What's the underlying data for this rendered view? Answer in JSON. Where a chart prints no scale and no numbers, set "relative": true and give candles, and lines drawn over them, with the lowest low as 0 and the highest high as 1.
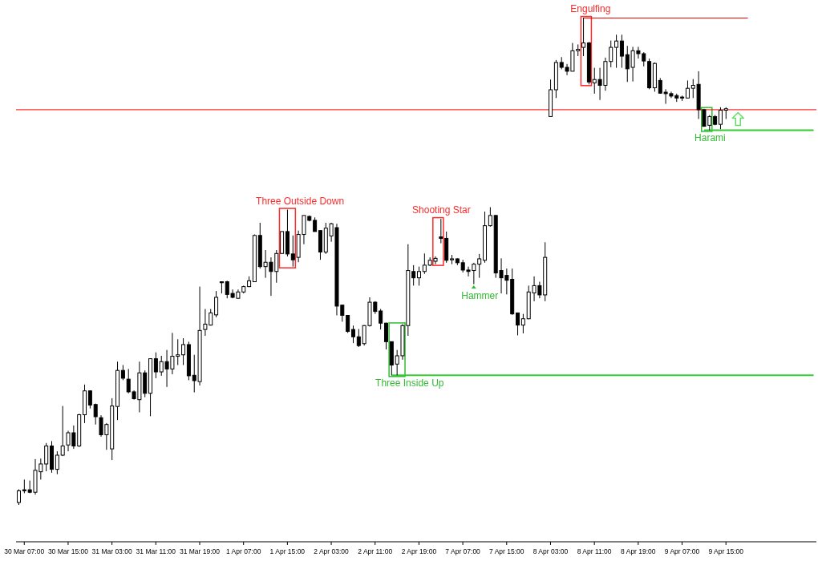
{
  "chart_data": {
    "type": "candlestick",
    "relative": true,
    "color": "#000000",
    "categories": [
      null,
      "30 Mar 07:00",
      null,
      null,
      null,
      null,
      null,
      null,
      null,
      "30 Mar 15:00",
      null,
      null,
      null,
      null,
      null,
      null,
      null,
      "31 Mar 03:00",
      null,
      null,
      null,
      null,
      null,
      null,
      null,
      "31 Mar 11:00",
      null,
      null,
      null,
      null,
      null,
      null,
      null,
      "31 Mar 19:00",
      null,
      null,
      null,
      null,
      null,
      null,
      null,
      "1 Apr 07:00",
      null,
      null,
      null,
      null,
      null,
      null,
      null,
      "1 Apr 15:00",
      null,
      null,
      null,
      null,
      null,
      null,
      null,
      "2 Apr 03:00",
      null,
      null,
      null,
      null,
      null,
      null,
      null,
      "2 Apr 11:00",
      null,
      null,
      null,
      null,
      null,
      null,
      null,
      "2 Apr 19:00",
      null,
      null,
      null,
      null,
      null,
      null,
      null,
      "7 Apr 07:00",
      null,
      null,
      null,
      null,
      null,
      null,
      null,
      "7 Apr 15:00",
      null,
      null,
      null,
      null,
      null,
      null,
      null,
      "8 Apr 03:00",
      null,
      null,
      null,
      null,
      null,
      null,
      null,
      "8 Apr 11:00",
      null,
      null,
      null,
      null,
      null,
      null,
      null,
      "8 Apr 19:00",
      null,
      null,
      null,
      null,
      null,
      null,
      null,
      "9 Apr 07:00",
      null,
      null,
      null,
      null,
      null,
      null,
      null,
      "9 Apr 15:00",
      null,
      null,
      null,
      null,
      null,
      null,
      null,
      null,
      null,
      null,
      null,
      null,
      null,
      null,
      null,
      null
    ],
    "ohlc": [
      [
        0.005,
        0.032,
        0,
        0.029
      ],
      [
        0.031,
        0.052,
        0.024,
        0.029
      ],
      [
        0.031,
        0.05,
        0.024,
        0.026
      ],
      [
        0.026,
        0.094,
        0.021,
        0.071
      ],
      [
        0.068,
        0.095,
        0.052,
        0.084
      ],
      [
        0.084,
        0.127,
        0.069,
        0.121
      ],
      [
        0.121,
        0.131,
        0.066,
        0.073
      ],
      [
        0.073,
        0.11,
        0.063,
        0.102
      ],
      [
        0.102,
        0.203,
        0.1,
        0.121
      ],
      [
        0.123,
        0.152,
        0.11,
        0.148
      ],
      [
        0.148,
        0.163,
        0.115,
        0.121
      ],
      [
        0.121,
        0.187,
        0.119,
        0.185
      ],
      [
        0.185,
        0.247,
        0.168,
        0.234
      ],
      [
        0.234,
        0.235,
        0.198,
        0.205
      ],
      [
        0.206,
        0.208,
        0.165,
        0.181
      ],
      [
        0.179,
        0.184,
        0.14,
        0.144
      ],
      [
        0.144,
        0.168,
        0.113,
        0.165
      ],
      [
        0.115,
        0.219,
        0.092,
        0.203
      ],
      [
        0.202,
        0.294,
        0.174,
        0.276
      ],
      [
        0.276,
        0.287,
        0.256,
        0.26
      ],
      [
        0.258,
        0.279,
        0.229,
        0.232
      ],
      [
        0.232,
        0.235,
        0.216,
        0.218
      ],
      [
        0.216,
        0.294,
        0.19,
        0.271
      ],
      [
        0.271,
        0.276,
        0.221,
        0.229
      ],
      [
        0.229,
        0.3,
        0.182,
        0.3
      ],
      [
        0.3,
        0.313,
        0.26,
        0.273
      ],
      [
        0.273,
        0.306,
        0.265,
        0.294
      ],
      [
        0.294,
        0.318,
        0.242,
        0.279
      ],
      [
        0.279,
        0.353,
        0.268,
        0.305
      ],
      [
        0.305,
        0.34,
        0.287,
        0.308
      ],
      [
        0.308,
        0.342,
        0.287,
        0.329
      ],
      [
        0.329,
        0.335,
        0.256,
        0.265
      ],
      [
        0.266,
        0.308,
        0.231,
        0.255
      ],
      [
        0.253,
        0.448,
        0.245,
        0.358
      ],
      [
        0.36,
        0.402,
        0.347,
        0.371
      ],
      [
        0.369,
        0.402,
        0.368,
        0.394
      ],
      [
        0.39,
        0.439,
        0.385,
        0.426
      ],
      [
        0.458,
        0.458,
        0.434,
        0.456
      ],
      [
        0.458,
        0.46,
        0.424,
        0.432
      ],
      [
        0.434,
        0.442,
        0.424,
        0.426
      ],
      [
        0.424,
        0.442,
        0.424,
        0.437
      ],
      [
        0.437,
        0.45,
        0.434,
        0.448
      ],
      [
        0.448,
        0.469,
        0.447,
        0.46
      ],
      [
        0.458,
        0.555,
        0.458,
        0.553
      ],
      [
        0.553,
        0.579,
        0.485,
        0.489
      ],
      [
        0.489,
        0.523,
        0.466,
        0.498
      ],
      [
        0.498,
        0.508,
        0.429,
        0.479
      ],
      [
        0.479,
        0.523,
        0.456,
        0.516
      ],
      [
        0.516,
        0.561,
        0.515,
        0.561
      ],
      [
        0.561,
        0.606,
        0.51,
        0.515
      ],
      [
        0.515,
        0.553,
        0.489,
        0.503
      ],
      [
        0.508,
        0.563,
        0.498,
        0.555
      ],
      [
        0.555,
        0.594,
        0.535,
        0.594
      ],
      [
        0.592,
        0.594,
        0.582,
        0.584
      ],
      [
        0.584,
        0.59,
        0.561,
        0.561
      ],
      [
        0.563,
        0.563,
        0.503,
        0.519
      ],
      [
        0.519,
        0.579,
        0.515,
        0.568
      ],
      [
        0.552,
        0.579,
        0.54,
        0.577
      ],
      [
        0.569,
        0.577,
        0.389,
        0.408
      ],
      [
        0.41,
        0.41,
        0.376,
        0.389
      ],
      [
        0.389,
        0.389,
        0.353,
        0.356
      ],
      [
        0.36,
        0.368,
        0.332,
        0.345
      ],
      [
        0.345,
        0.361,
        0.324,
        0.327
      ],
      [
        0.331,
        0.369,
        0.327,
        0.368
      ],
      [
        0.368,
        0.426,
        0.366,
        0.416
      ],
      [
        0.416,
        0.418,
        0.392,
        0.397
      ],
      [
        0.398,
        0.402,
        0.36,
        0.373
      ],
      [
        0.373,
        0.374,
        0.319,
        0.335
      ],
      [
        0.335,
        0.335,
        0.266,
        0.287
      ],
      [
        0.289,
        0.318,
        0.266,
        0.306
      ],
      [
        0.306,
        0.371,
        0.298,
        0.368
      ],
      [
        0.368,
        0.535,
        0.347,
        0.481
      ],
      [
        0.479,
        0.492,
        0.45,
        0.466
      ],
      [
        0.466,
        0.489,
        0.45,
        0.479
      ],
      [
        0.479,
        0.516,
        0.474,
        0.492
      ],
      [
        0.492,
        0.508,
        0.49,
        0.502
      ],
      [
        0.5,
        0.51,
        0.494,
        0.506
      ],
      [
        0.55,
        0.587,
        0.537,
        0.547
      ],
      [
        0.547,
        0.561,
        0.497,
        0.502
      ],
      [
        0.503,
        0.513,
        0.494,
        0.505
      ],
      [
        0.505,
        0.506,
        0.492,
        0.497
      ],
      [
        0.497,
        0.503,
        0.477,
        0.482
      ],
      [
        0.482,
        0.489,
        0.469,
        0.479
      ],
      [
        0.481,
        0.497,
        0.453,
        0.494
      ],
      [
        0.494,
        0.515,
        0.466,
        0.505
      ],
      [
        0.502,
        0.602,
        0.497,
        0.573
      ],
      [
        0.573,
        0.611,
        0.571,
        0.594
      ],
      [
        0.594,
        0.595,
        0.466,
        0.476
      ],
      [
        0.481,
        0.506,
        0.434,
        0.466
      ],
      [
        0.471,
        0.485,
        0.432,
        0.461
      ],
      [
        0.463,
        0.485,
        0.39,
        0.392
      ],
      [
        0.394,
        0.394,
        0.348,
        0.369
      ],
      [
        0.369,
        0.392,
        0.352,
        0.382
      ],
      [
        0.382,
        0.45,
        0.381,
        0.437
      ],
      [
        0.435,
        0.469,
        0.418,
        0.45
      ],
      [
        0.45,
        0.458,
        0.424,
        0.431
      ],
      [
        0.431,
        0.539,
        0.418,
        0.508
      ],
      [
        0.797,
        0.873,
        0.797,
        0.852
      ],
      [
        0.852,
        0.913,
        0.835,
        0.908
      ],
      [
        0.908,
        0.919,
        0.894,
        0.898
      ],
      [
        0.898,
        0.905,
        0.882,
        0.89
      ],
      [
        0.89,
        0.948,
        0.89,
        0.932
      ],
      [
        0.932,
        0.945,
        0.921,
        0.935
      ],
      [
        0.939,
        1,
        0.921,
        0.948
      ],
      [
        0.948,
        0.95,
        0.863,
        0.868
      ],
      [
        0.866,
        0.897,
        0.844,
        0.873
      ],
      [
        0.873,
        0.897,
        0.831,
        0.861
      ],
      [
        0.861,
        0.918,
        0.85,
        0.91
      ],
      [
        0.91,
        0.953,
        0.898,
        0.939
      ],
      [
        0.939,
        0.965,
        0.897,
        0.952
      ],
      [
        0.952,
        0.965,
        0.897,
        0.921
      ],
      [
        0.924,
        0.942,
        0.868,
        0.895
      ],
      [
        0.898,
        0.94,
        0.869,
        0.932
      ],
      [
        0.932,
        0.94,
        0.916,
        0.926
      ],
      [
        0.926,
        0.929,
        0.9,
        0.911
      ],
      [
        0.91,
        0.916,
        0.853,
        0.856
      ],
      [
        0.856,
        0.908,
        0.848,
        0.906
      ],
      [
        0.871,
        0.876,
        0.844,
        0.845
      ],
      [
        0.847,
        0.853,
        0.823,
        0.844
      ],
      [
        0.844,
        0.848,
        0.835,
        0.839
      ],
      [
        0.84,
        0.844,
        0.827,
        0.835
      ],
      [
        0.837,
        0.84,
        0.829,
        0.835
      ],
      [
        0.835,
        0.871,
        0.835,
        0.855
      ],
      [
        0.855,
        0.874,
        0.835,
        0.861
      ],
      [
        0.863,
        0.89,
        0.792,
        0.811
      ],
      [
        0.811,
        0.813,
        0.776,
        0.777
      ],
      [
        0.779,
        0.8,
        0.769,
        0.797
      ],
      [
        0.797,
        0.8,
        0.779,
        0.781
      ],
      [
        0.781,
        0.816,
        0.771,
        0.81
      ],
      [
        0.81,
        0.816,
        0.792,
        0.813
      ],
      null,
      null,
      null,
      null,
      null,
      null,
      null,
      null,
      null,
      null,
      null,
      null,
      null,
      null,
      null,
      null
    ],
    "series": [
      {
        "type": "line",
        "color": "#33cc33",
        "values": [
          null,
          null,
          null,
          null,
          null,
          null,
          null,
          null,
          null,
          null,
          null,
          null,
          null,
          null,
          null,
          null,
          null,
          null,
          null,
          null,
          null,
          null,
          null,
          null,
          null,
          null,
          null,
          null,
          null,
          null,
          null,
          null,
          null,
          null,
          null,
          null,
          null,
          null,
          null,
          null,
          null,
          null,
          null,
          null,
          null,
          null,
          null,
          null,
          null,
          null,
          null,
          null,
          null,
          null,
          null,
          null,
          null,
          null,
          null,
          null,
          null,
          null,
          null,
          null,
          null,
          null,
          null,
          null,
          0.266,
          0.266,
          0.266,
          0.266,
          0.266,
          0.266,
          0.266,
          0.266,
          0.266,
          0.266,
          0.266,
          0.266,
          0.266,
          0.266,
          0.266,
          0.266,
          0.266,
          0.266,
          0.266,
          0.266,
          0.266,
          0.266,
          0.266,
          0.266,
          0.266,
          0.266,
          0.266,
          0.266,
          0.266,
          0.266,
          0.266,
          0.266,
          0.266,
          0.266,
          0.266,
          0.266,
          0.266,
          0.266,
          0.266,
          0.266,
          0.266,
          0.266,
          0.266,
          0.266,
          0.266,
          0.266,
          0.266,
          0.266,
          0.266,
          0.266,
          0.266,
          0.266,
          0.266,
          0.266,
          0.266,
          0.266,
          0.266,
          0.266,
          0.266,
          0.266,
          0.266,
          0.266,
          0.266,
          0.266,
          0.266,
          0.266,
          0.266,
          0.266,
          0.266,
          0.266,
          0.266,
          0.266,
          0.266,
          0.266,
          0.266,
          0.266,
          0.266,
          0.266
        ]
      },
      {
        "type": "line",
        "color": "#ff0000",
        "values": [
          null,
          null,
          null,
          null,
          null,
          null,
          null,
          null,
          null,
          null,
          null,
          null,
          null,
          null,
          null,
          null,
          null,
          null,
          null,
          null,
          null,
          null,
          null,
          null,
          null,
          null,
          null,
          null,
          null,
          null,
          null,
          null,
          null,
          null,
          null,
          null,
          null,
          null,
          null,
          null,
          null,
          null,
          null,
          null,
          null,
          null,
          null,
          null,
          null,
          null,
          null,
          null,
          null,
          null,
          null,
          null,
          null,
          null,
          null,
          null,
          null,
          null,
          null,
          null,
          null,
          null,
          null,
          null,
          null,
          null,
          null,
          null,
          null,
          null,
          null,
          null,
          null,
          null,
          null,
          null,
          null,
          null,
          null,
          null,
          null,
          null,
          null,
          null,
          null,
          null,
          null,
          null,
          null,
          null,
          null,
          null,
          null,
          null,
          null,
          null,
          null,
          null,
          null,
          1,
          1,
          1,
          1,
          1,
          1,
          1,
          1,
          1,
          1,
          1,
          1,
          1,
          1,
          1,
          1,
          1,
          1,
          1,
          1,
          1,
          1,
          1,
          1,
          1,
          1,
          1,
          1,
          1,
          1,
          1,
          null,
          null,
          null,
          null,
          null,
          null,
          null,
          null,
          null,
          null,
          null,
          null
        ]
      },
      {
        "type": "line",
        "color": "#33cc33",
        "values": [
          null,
          null,
          null,
          null,
          null,
          null,
          null,
          null,
          null,
          null,
          null,
          null,
          null,
          null,
          null,
          null,
          null,
          null,
          null,
          null,
          null,
          null,
          null,
          null,
          null,
          null,
          null,
          null,
          null,
          null,
          null,
          null,
          null,
          null,
          null,
          null,
          null,
          null,
          null,
          null,
          null,
          null,
          null,
          null,
          null,
          null,
          null,
          null,
          null,
          null,
          null,
          null,
          null,
          null,
          null,
          null,
          null,
          null,
          null,
          null,
          null,
          null,
          null,
          null,
          null,
          null,
          null,
          null,
          null,
          null,
          null,
          null,
          null,
          null,
          null,
          null,
          null,
          null,
          null,
          null,
          null,
          null,
          null,
          null,
          null,
          null,
          null,
          null,
          null,
          null,
          null,
          null,
          null,
          null,
          null,
          null,
          null,
          null,
          null,
          null,
          null,
          null,
          null,
          null,
          null,
          null,
          null,
          null,
          null,
          null,
          null,
          null,
          null,
          null,
          null,
          null,
          null,
          null,
          null,
          null,
          null,
          null,
          null,
          null,
          null,
          0.769,
          0.769,
          0.769,
          0.769,
          0.769,
          0.769,
          0.769,
          0.769,
          0.769,
          0.769,
          0.769,
          0.769,
          0.769,
          0.769,
          0.769,
          0.769,
          0.769,
          0.769,
          0.769,
          0.769,
          0.769
        ]
      }
    ],
    "ref_lines": [
      {
        "axis": "y",
        "value": 0.811,
        "color": "#ff0000"
      }
    ],
    "annotations": [
      "Three Outside Down",
      "Three Inside Up",
      "Shooting Star",
      "Hammer",
      "Engulfing",
      "Harami"
    ]
  }
}
